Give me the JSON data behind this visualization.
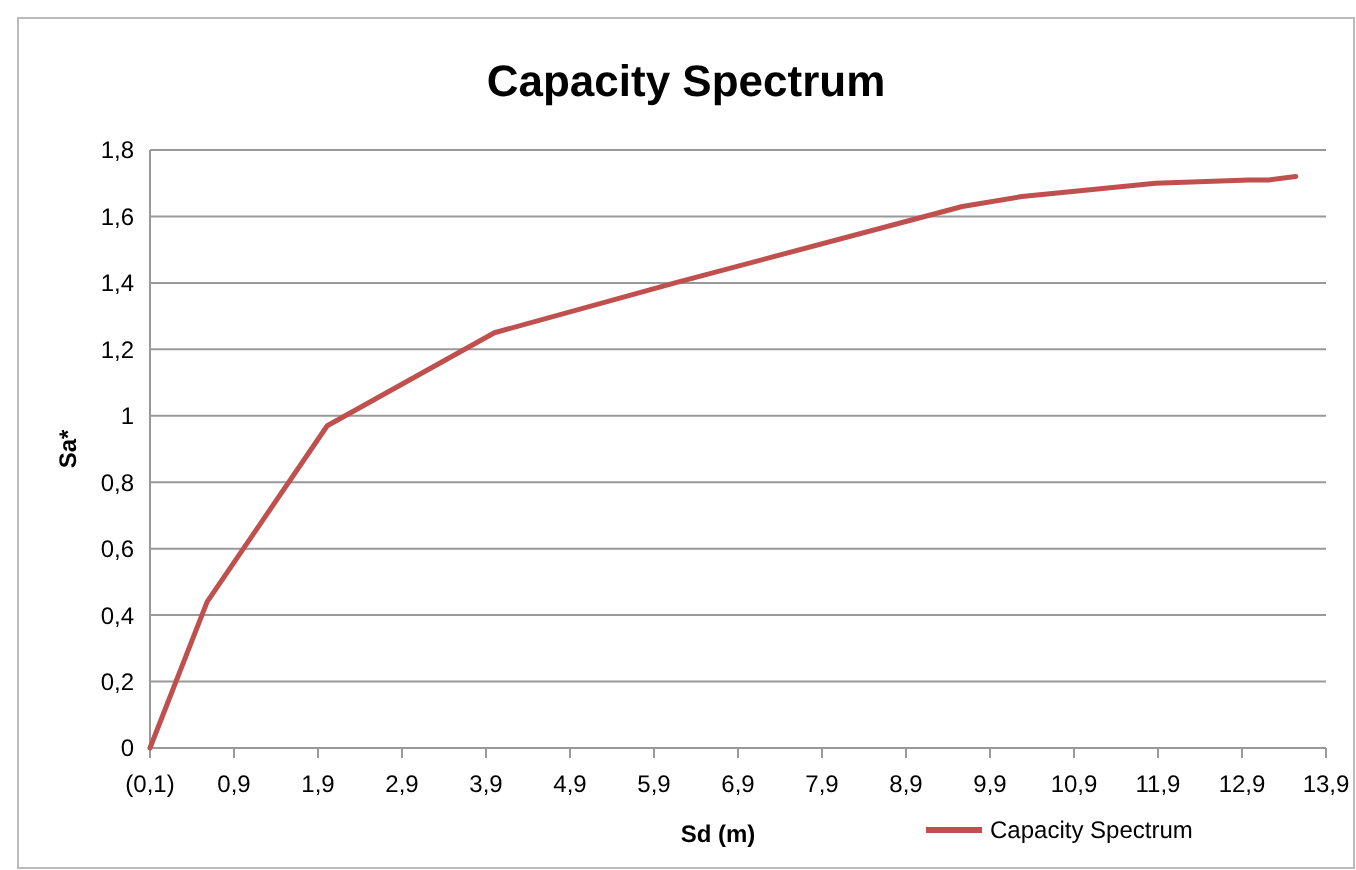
{
  "chart_data": {
    "type": "line",
    "title": "Capacity Spectrum",
    "xlabel": "Sd (m)",
    "ylabel": "Sa*",
    "x": [
      -0.1,
      0.58,
      2.01,
      4.0,
      6.15,
      9.57,
      10.28,
      11.87,
      12.98,
      13.22,
      13.54
    ],
    "series": [
      {
        "name": "Capacity Spectrum",
        "color": "#c0504d",
        "values": [
          0,
          0.44,
          0.97,
          1.25,
          1.4,
          1.63,
          1.66,
          1.7,
          1.71,
          1.71,
          1.72
        ]
      }
    ],
    "xlim": [
      -0.1,
      13.9
    ],
    "xticks": [
      {
        "value": -0.1,
        "label": "(0,1)"
      },
      {
        "value": 0.9,
        "label": "0,9"
      },
      {
        "value": 1.9,
        "label": "1,9"
      },
      {
        "value": 2.9,
        "label": "2,9"
      },
      {
        "value": 3.9,
        "label": "3,9"
      },
      {
        "value": 4.9,
        "label": "4,9"
      },
      {
        "value": 5.9,
        "label": "5,9"
      },
      {
        "value": 6.9,
        "label": "6,9"
      },
      {
        "value": 7.9,
        "label": "7,9"
      },
      {
        "value": 8.9,
        "label": "8,9"
      },
      {
        "value": 9.9,
        "label": "9,9"
      },
      {
        "value": 10.9,
        "label": "10,9"
      },
      {
        "value": 11.9,
        "label": "11,9"
      },
      {
        "value": 12.9,
        "label": "12,9"
      },
      {
        "value": 13.9,
        "label": "13,9"
      }
    ],
    "ylim": [
      0,
      1.8
    ],
    "yticks": [
      0,
      {
        "value": 0.2,
        "label": "0,2"
      },
      {
        "value": 0.4,
        "label": "0,4"
      },
      {
        "value": 0.6,
        "label": "0,6"
      },
      {
        "value": 0.8,
        "label": "0,8"
      },
      1,
      {
        "value": 1.2,
        "label": "1,2"
      },
      {
        "value": 1.4,
        "label": "1,4"
      },
      {
        "value": 1.6,
        "label": "1,6"
      },
      {
        "value": 1.8,
        "label": "1,8"
      }
    ],
    "grid": "y",
    "legend": "bottom right",
    "marker": "none",
    "line_style": "solid"
  }
}
